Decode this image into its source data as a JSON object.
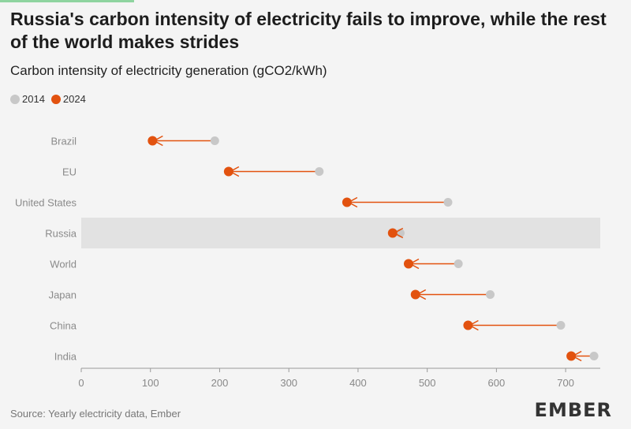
{
  "title": "Russia's carbon intensity of electricity fails to improve, while the rest of the world makes strides",
  "subtitle": "Carbon intensity of electricity generation (gCO2/kWh)",
  "source": "Source: Yearly electricity data, Ember",
  "logo_text": "EMBER",
  "colors": {
    "accent": "#e2520f",
    "old": "#c8c8c8",
    "highlight_band": "#e2e2e2"
  },
  "chart_data": {
    "type": "dumbbell",
    "title": "Russia's carbon intensity of electricity fails to improve, while the rest of the world makes strides",
    "subtitle": "Carbon intensity of electricity generation (gCO2/kWh)",
    "xlim": [
      0,
      750
    ],
    "xticks": [
      0,
      100,
      200,
      300,
      400,
      500,
      600,
      700
    ],
    "legend": [
      {
        "name": "2014",
        "color": "#c8c8c8"
      },
      {
        "name": "2024",
        "color": "#e2520f"
      }
    ],
    "legend_position": "top-left",
    "highlight": "Russia",
    "categories": [
      "Brazil",
      "EU",
      "United States",
      "Russia",
      "World",
      "Japan",
      "China",
      "India"
    ],
    "series": [
      {
        "name": "2014",
        "values": [
          193,
          344,
          530,
          461,
          545,
          591,
          693,
          741
        ]
      },
      {
        "name": "2024",
        "values": [
          103,
          213,
          384,
          450,
          473,
          483,
          559,
          708
        ]
      }
    ]
  }
}
